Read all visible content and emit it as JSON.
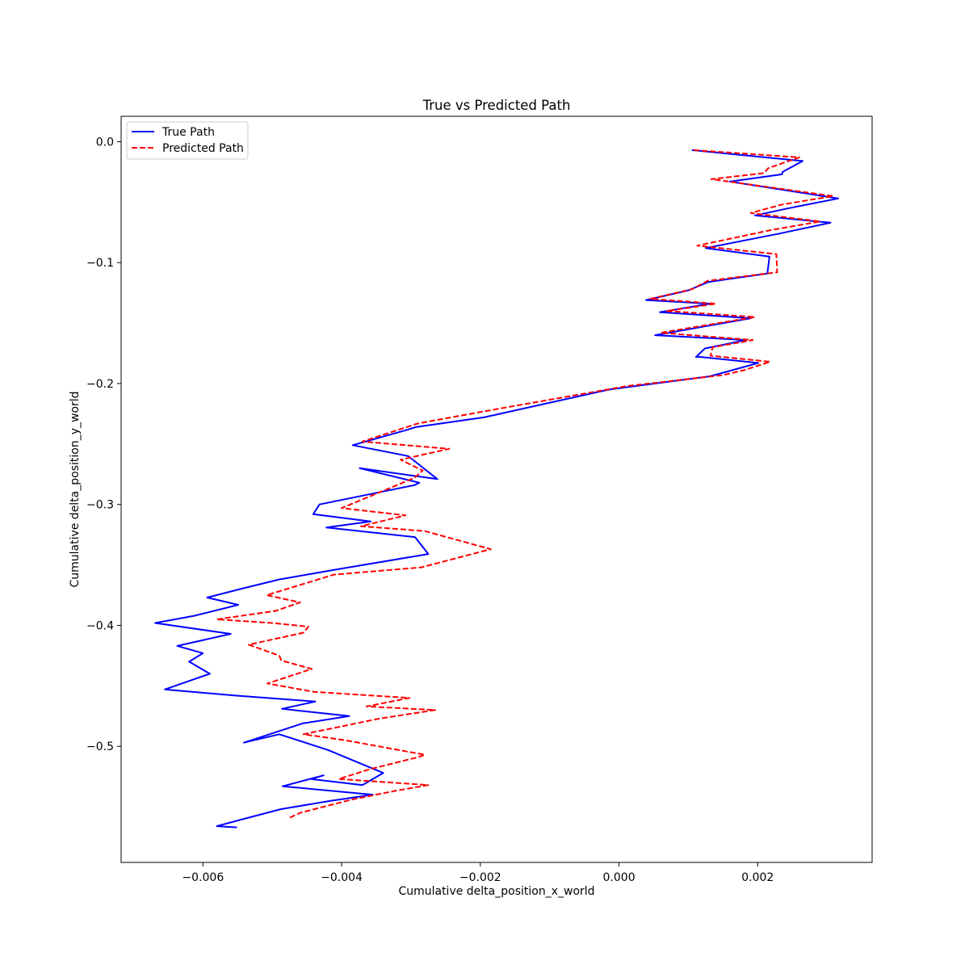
{
  "chart_data": {
    "type": "line",
    "title": "True vs Predicted Path",
    "xlabel": "Cumulative delta_position_x_world",
    "ylabel": "Cumulative delta_position_y_world",
    "xlim": [
      -0.00718,
      0.00365
    ],
    "ylim": [
      -0.596,
      0.021
    ],
    "xticks": [
      -0.006,
      -0.004,
      -0.002,
      0.0,
      0.002
    ],
    "xtick_labels": [
      "−0.006",
      "−0.004",
      "−0.002",
      "0.000",
      "0.002"
    ],
    "yticks": [
      0.0,
      -0.1,
      -0.2,
      -0.3,
      -0.4,
      -0.5
    ],
    "ytick_labels": [
      "0.0",
      "−0.1",
      "−0.2",
      "−0.3",
      "−0.4",
      "−0.5"
    ],
    "grid": false,
    "legend": "upper-left",
    "series": [
      {
        "name": "True Path",
        "color": "#0000ff",
        "style": "solid",
        "x": [
          0.00105,
          0.00265,
          0.00236,
          0.00235,
          0.0016,
          0.00316,
          0.00245,
          0.00196,
          0.00305,
          0.00231,
          0.00125,
          0.00217,
          0.00214,
          0.00129,
          0.001,
          0.00039,
          0.00131,
          0.00059,
          0.0019,
          0.00052,
          0.00183,
          0.00124,
          0.00111,
          0.00117,
          0.00201,
          0.00131,
          -0.00015,
          -0.00195,
          -0.00293,
          -0.00304,
          -0.00384,
          -0.00304,
          -0.00262,
          -0.00374,
          -0.00288,
          -0.00295,
          -0.00432,
          -0.00441,
          -0.00358,
          -0.00422,
          -0.00294,
          -0.00275,
          -0.004,
          -0.0049,
          -0.0054,
          -0.00594,
          -0.00549,
          -0.00612,
          -0.00669,
          -0.0056,
          -0.00637,
          -0.006,
          -0.0062,
          -0.0059,
          -0.00655,
          -0.00555,
          -0.00438,
          -0.00486,
          -0.00389,
          -0.00456,
          -0.00541,
          -0.0049,
          -0.0042,
          -0.0034,
          -0.0037,
          -0.00444,
          -0.00426,
          -0.00485,
          -0.00355,
          -0.00415,
          -0.00488,
          -0.00541,
          -0.0058,
          -0.00551
        ],
        "y": [
          -0.007,
          -0.016,
          -0.025,
          -0.027,
          -0.033,
          -0.047,
          -0.055,
          -0.061,
          -0.067,
          -0.076,
          -0.088,
          -0.095,
          -0.109,
          -0.116,
          -0.123,
          -0.131,
          -0.134,
          -0.141,
          -0.146,
          -0.16,
          -0.164,
          -0.171,
          -0.178,
          -0.178,
          -0.183,
          -0.194,
          -0.205,
          -0.228,
          -0.236,
          -0.238,
          -0.251,
          -0.26,
          -0.279,
          -0.27,
          -0.282,
          -0.284,
          -0.3,
          -0.308,
          -0.314,
          -0.319,
          -0.327,
          -0.341,
          -0.353,
          -0.362,
          -0.369,
          -0.377,
          -0.383,
          -0.392,
          -0.398,
          -0.407,
          -0.417,
          -0.423,
          -0.43,
          -0.44,
          -0.453,
          -0.458,
          -0.463,
          -0.469,
          -0.475,
          -0.481,
          -0.497,
          -0.49,
          -0.503,
          -0.522,
          -0.532,
          -0.527,
          -0.524,
          -0.533,
          -0.54,
          -0.545,
          -0.552,
          -0.56,
          -0.566,
          -0.567
        ]
      },
      {
        "name": "Predicted Path",
        "color": "#ff0000",
        "style": "dashed",
        "x": [
          0.00108,
          0.0026,
          0.00215,
          0.00209,
          0.00133,
          0.00309,
          0.00235,
          0.0019,
          0.0029,
          0.0022,
          0.00113,
          0.00227,
          0.00228,
          0.00128,
          0.00105,
          0.00045,
          0.0014,
          0.00069,
          0.00196,
          0.0006,
          0.00193,
          0.00135,
          0.00132,
          0.00218,
          0.0018,
          0.0015,
          0.00012,
          -0.00175,
          -0.0029,
          -0.00333,
          -0.0037,
          -0.00245,
          -0.00315,
          -0.00283,
          -0.00295,
          -0.004,
          -0.00308,
          -0.00372,
          -0.0028,
          -0.00185,
          -0.00285,
          -0.00411,
          -0.00508,
          -0.0046,
          -0.00495,
          -0.0058,
          -0.005,
          -0.00448,
          -0.00455,
          -0.00534,
          -0.0049,
          -0.00487,
          -0.00443,
          -0.00507,
          -0.0044,
          -0.00302,
          -0.00364,
          -0.00265,
          -0.00345,
          -0.00455,
          -0.00395,
          -0.0028,
          -0.0029,
          -0.0036,
          -0.00404,
          -0.00275,
          -0.00324,
          -0.00385,
          -0.0046,
          -0.00475
        ],
        "y": [
          -0.007,
          -0.013,
          -0.022,
          -0.026,
          -0.031,
          -0.045,
          -0.052,
          -0.059,
          -0.066,
          -0.073,
          -0.086,
          -0.093,
          -0.108,
          -0.115,
          -0.122,
          -0.13,
          -0.134,
          -0.14,
          -0.145,
          -0.158,
          -0.164,
          -0.17,
          -0.177,
          -0.182,
          -0.189,
          -0.193,
          -0.202,
          -0.221,
          -0.233,
          -0.241,
          -0.248,
          -0.254,
          -0.263,
          -0.272,
          -0.278,
          -0.303,
          -0.309,
          -0.318,
          -0.322,
          -0.337,
          -0.352,
          -0.358,
          -0.375,
          -0.381,
          -0.388,
          -0.395,
          -0.398,
          -0.401,
          -0.406,
          -0.416,
          -0.425,
          -0.429,
          -0.436,
          -0.448,
          -0.455,
          -0.46,
          -0.467,
          -0.47,
          -0.477,
          -0.49,
          -0.495,
          -0.507,
          -0.509,
          -0.519,
          -0.527,
          -0.532,
          -0.537,
          -0.544,
          -0.555,
          -0.559
        ]
      }
    ]
  }
}
